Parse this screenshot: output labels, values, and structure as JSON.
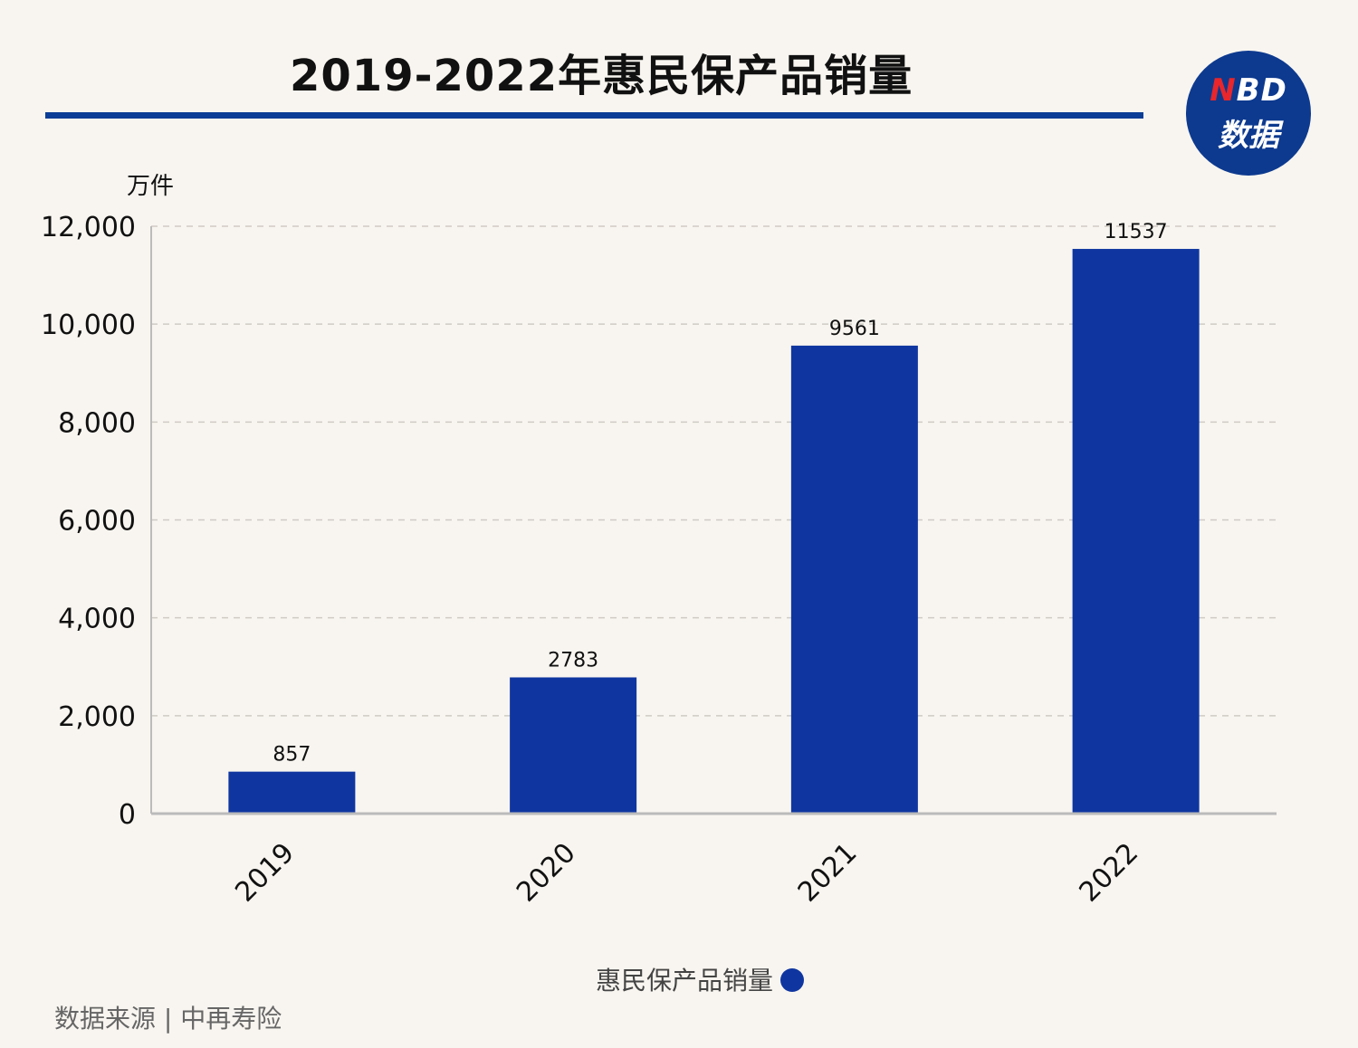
{
  "chart_data": {
    "type": "bar",
    "title": "2019-2022年惠民保产品销量",
    "ylabel": "万件",
    "xlabel": "",
    "categories": [
      "2019",
      "2020",
      "2021",
      "2022"
    ],
    "series": [
      {
        "name": "惠民保产品销量",
        "values": [
          857,
          2783,
          9561,
          11537
        ]
      }
    ],
    "ylim": [
      0,
      12000
    ],
    "yticks": [
      0,
      2000,
      4000,
      6000,
      8000,
      10000,
      12000
    ],
    "ytick_labels": [
      "0",
      "2,000",
      "4,000",
      "6,000",
      "8,000",
      "10,000",
      "12,000"
    ],
    "data_labels": [
      "857",
      "2783",
      "9561",
      "11537"
    ],
    "grid": true,
    "legend_position": "bottom-center",
    "bar_color": "#0f36a0"
  },
  "logo": {
    "n": "N",
    "bd": "BD",
    "sub": "数据"
  },
  "source": "数据来源 | 中再寿险"
}
